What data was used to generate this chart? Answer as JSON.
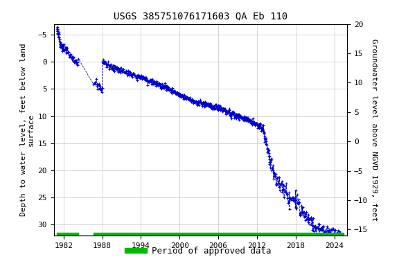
{
  "title": "USGS 385751076171603 QA Eb 110",
  "ylabel_left": "Depth to water level, feet below land\nsurface",
  "ylabel_right": "Groundwater level above NGVD 1929, feet",
  "xlim": [
    1980.5,
    2026.0
  ],
  "ylim_left_bottom": 32,
  "ylim_left_top": -7,
  "ylim_right_top": 20,
  "ylim_right_bottom": -16,
  "yticks_left": [
    -5,
    0,
    5,
    10,
    15,
    20,
    25,
    30
  ],
  "yticks_right": [
    20,
    15,
    10,
    5,
    0,
    -5,
    -10,
    -15
  ],
  "xticks": [
    1982,
    1988,
    1994,
    2000,
    2006,
    2012,
    2018,
    2024
  ],
  "data_color": "#0000cc",
  "approved_color": "#00bb00",
  "background_color": "#ffffff",
  "grid_color": "#cccccc",
  "title_fontsize": 10,
  "axis_label_fontsize": 8,
  "tick_fontsize": 8,
  "legend_fontsize": 9,
  "font_family": "monospace",
  "approved_gap_start": 1984.3,
  "approved_gap_end": 1986.7,
  "approved_start": 1981.0,
  "approved_end": 2025.5
}
